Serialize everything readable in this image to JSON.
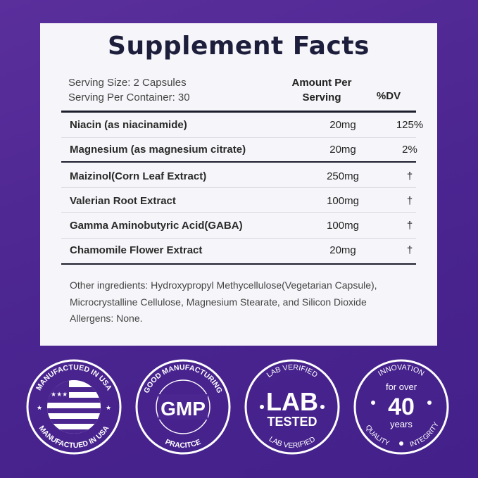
{
  "title": "Supplement Facts",
  "serving_size": "Serving Size: 2 Capsules",
  "serving_per_container": "Serving Per Container: 30",
  "header": {
    "amount_line1": "Amount Per",
    "amount_line2": "Serving",
    "dv": "%DV"
  },
  "rows": [
    {
      "name": "Niacin (as niacinamide)",
      "amount": "20mg",
      "dv": "125%"
    },
    {
      "name": "Magnesium (as magnesium citrate)",
      "amount": "20mg",
      "dv": "2%"
    },
    {
      "name": "Maizinol(Corn Leaf Extract)",
      "amount": "250mg",
      "dv": "†"
    },
    {
      "name": "Valerian Root Extract",
      "amount": "100mg",
      "dv": "†"
    },
    {
      "name": "Gamma Aminobutyric Acid(GABA)",
      "amount": "100mg",
      "dv": "†"
    },
    {
      "name": "Chamomile Flower Extract",
      "amount": "20mg",
      "dv": "†"
    }
  ],
  "other": {
    "line1": "Other ingredients: Hydroxypropyl Methycellulose(Vegetarian Capsule),",
    "line2": "Microcrystalline Cellulose, Magnesium Stearate, and Silicon Dioxide",
    "line3": "Allergens: None."
  },
  "badges": {
    "usa": {
      "top": "MANUFACTUED IN USA",
      "bottom": "MANUFACTUED IN USA"
    },
    "gmp": {
      "top": "GOOD MANUFACTURING",
      "center": "GMP",
      "bottom": "PRACITCE"
    },
    "lab": {
      "top": "LAB VERIFIED",
      "center1": "LAB",
      "center2": "TESTED",
      "bottom": "LAB VERIFIED"
    },
    "innovation": {
      "top": "INNOVATION",
      "line1": "for over",
      "number": "40",
      "line2": "years",
      "bottom_left": "QUALITY",
      "bottom_right": "INTEGRITY"
    }
  },
  "colors": {
    "background": "#4b2590",
    "card": "#f6f5f9",
    "title": "#1d1e3c"
  }
}
